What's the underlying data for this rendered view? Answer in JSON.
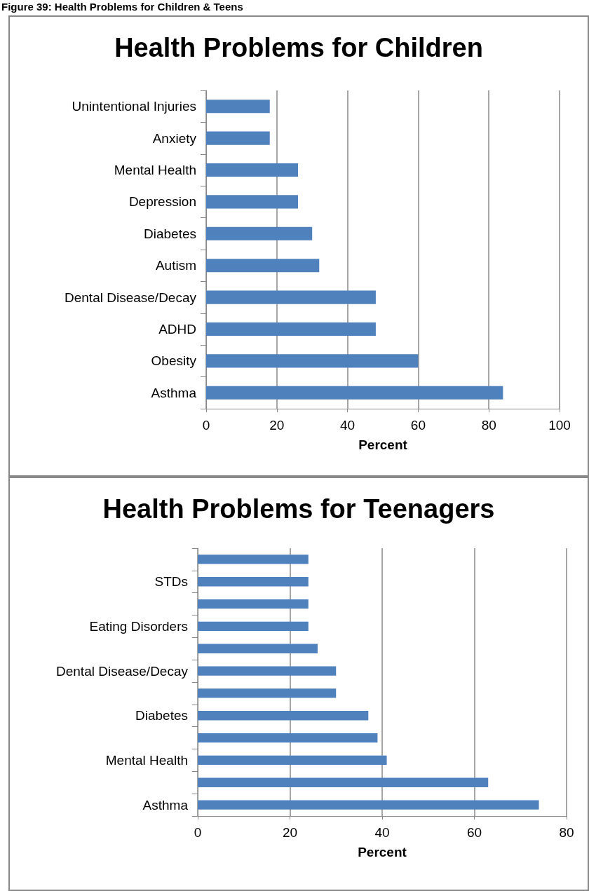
{
  "chart_data": [
    {
      "type": "bar",
      "orientation": "horizontal",
      "title": "Health Problems for Children",
      "xlabel": "Percent",
      "annotations": [
        "Figure 39: Health Problems for Children & Teens"
      ],
      "categories": [
        "Unintentional Injuries",
        "Anxiety",
        "Mental Health",
        "Depression",
        "Diabetes",
        "Autism",
        "Dental Disease/Decay",
        "ADHD",
        "Obesity",
        "Asthma"
      ],
      "values": [
        18,
        18,
        26,
        26,
        30,
        32,
        48,
        48,
        60,
        84
      ],
      "color": "#4f81bd",
      "xlim": [
        0,
        100
      ],
      "xticks": [
        0,
        20,
        40,
        60,
        80,
        100
      ],
      "grid": "x"
    },
    {
      "type": "bar",
      "orientation": "horizontal",
      "title": "Health Problems for Teenagers",
      "xlabel": "Percent",
      "categories": [
        null,
        "STDs",
        null,
        "Eating Disorders",
        null,
        "Dental Disease/Decay",
        null,
        "Diabetes",
        null,
        "Mental Health",
        null,
        "Asthma"
      ],
      "values": [
        24,
        24,
        24,
        24,
        26,
        30,
        30,
        37,
        39,
        41,
        63,
        74
      ],
      "color": "#4f81bd",
      "xlim": [
        0,
        80
      ],
      "xticks": [
        0,
        20,
        40,
        60,
        80
      ],
      "grid": "x"
    }
  ]
}
